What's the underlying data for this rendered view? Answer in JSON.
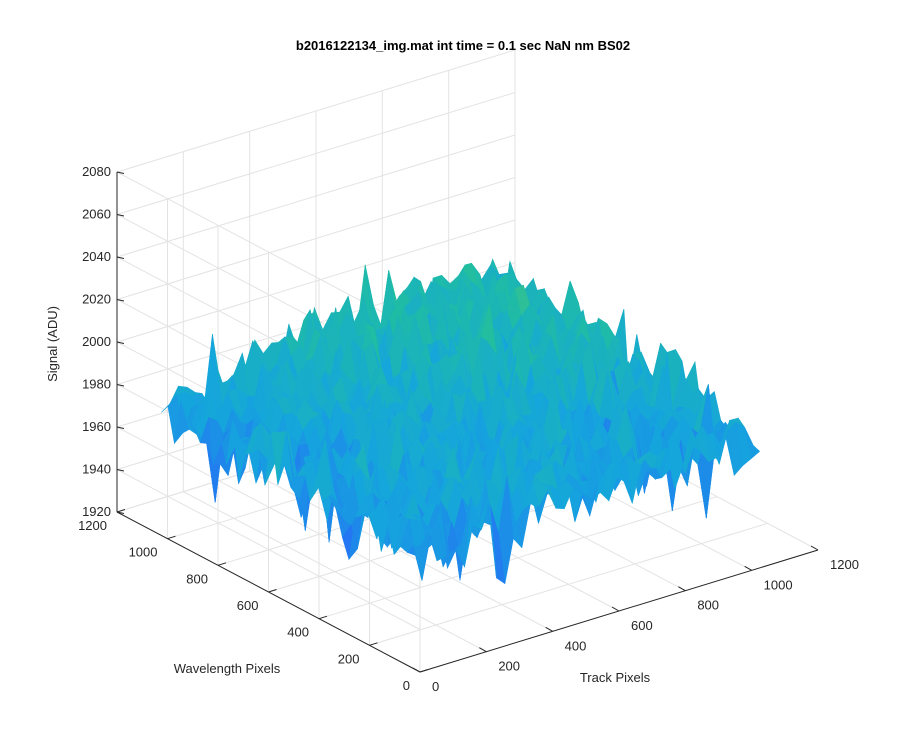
{
  "chart_data": {
    "type": "surface",
    "title": "b2016122134_img.mat int time = 0.1 sec  NaN nm BS02",
    "xlabel": "Track Pixels",
    "ylabel": "Wavelength Pixels",
    "zlabel": "Signal (ADU)",
    "xlim": [
      0,
      1200
    ],
    "ylim": [
      0,
      1200
    ],
    "zlim": [
      1920,
      2080
    ],
    "x_ticks": [
      "0",
      "200",
      "400",
      "600",
      "800",
      "1000",
      "1200"
    ],
    "y_ticks": [
      "0",
      "200",
      "400",
      "600",
      "800",
      "1000",
      "1200"
    ],
    "z_ticks": [
      "1920",
      "1940",
      "1960",
      "1980",
      "2000",
      "2020",
      "2040",
      "2060",
      "2080"
    ],
    "data_extent": {
      "x": [
        0,
        1024
      ],
      "y": [
        0,
        1024
      ]
    },
    "surface_summary": {
      "mean_signal": 1985,
      "noise_spread": 15,
      "min_signal": 1925,
      "max_signal": 2060,
      "highest_region": "high Track Pixels, high Wavelength Pixels",
      "lowest_region": "low Track Pixels, low Wavelength Pixels"
    },
    "grid": true,
    "colormap": "parula"
  }
}
